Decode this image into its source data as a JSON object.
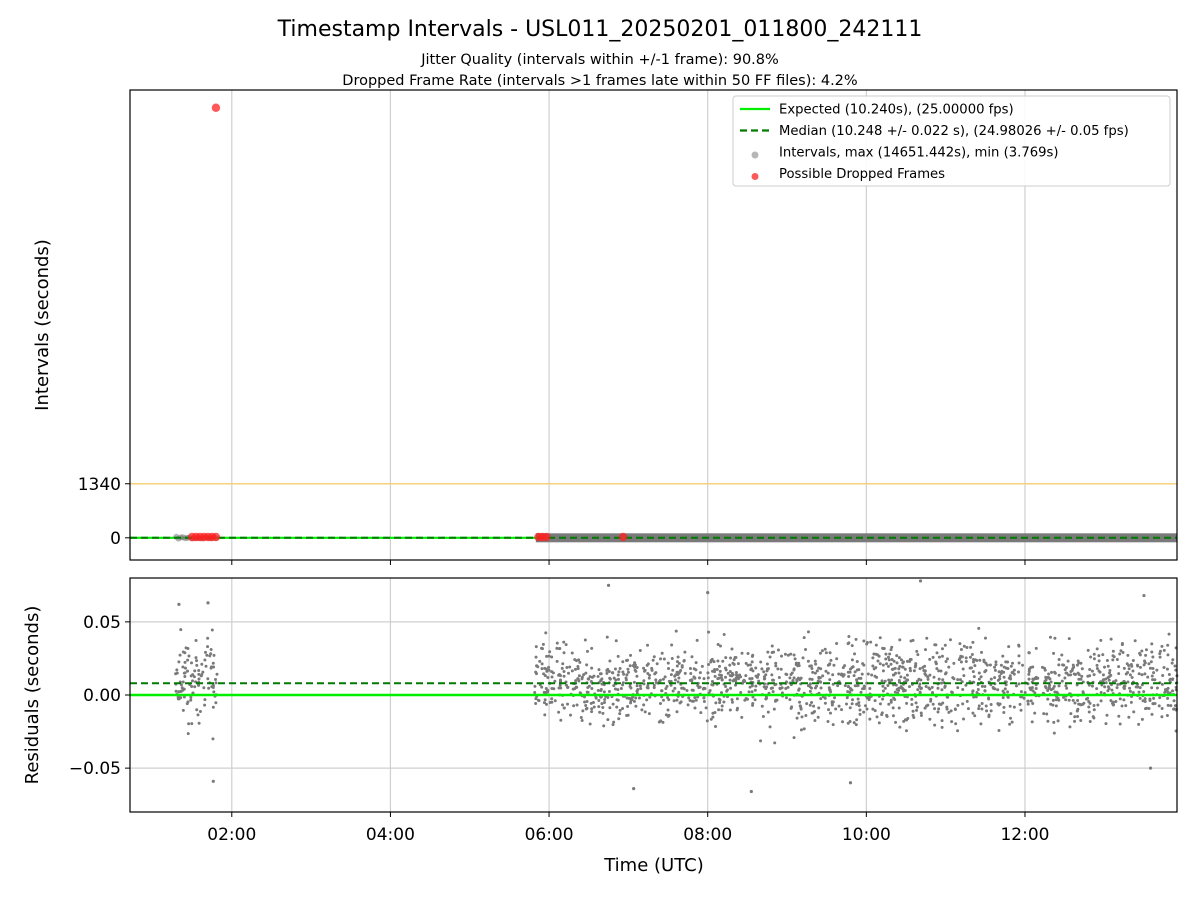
{
  "title": "Timestamp Intervals - USL011_20250201_011800_242111",
  "subtitle_lines": [
    "Jitter Quality (intervals within +/-1 frame): 90.8%",
    "Dropped Frame Rate (intervals >1 frames late within 50 FF files): 4.2%"
  ],
  "colors": {
    "expected": "#00ee00",
    "median": "#007a00",
    "intervals": "#7a7a7a",
    "dropped": "#ff2020",
    "threshold": "#f5d27a",
    "grid": "#cfcfcf"
  },
  "chart_data": [
    {
      "type": "scatter",
      "panel": "intervals",
      "ylabel": "Intervals (seconds)",
      "xlim": [
        "00:43",
        "13:55"
      ],
      "ylim": [
        -550,
        11100
      ],
      "yticks": [
        0,
        1340
      ],
      "xticks": [
        "02:00",
        "04:00",
        "06:00",
        "08:00",
        "10:00",
        "12:00"
      ],
      "grid": "vertical",
      "legend_position": "top-right",
      "threshold_line": 1340,
      "expected": 10.24,
      "median": 10.248,
      "legend": [
        {
          "key": "expected",
          "label": "Expected (10.240s), (25.00000 fps)"
        },
        {
          "key": "median",
          "label": "Median (10.248 +/- 0.022 s), (24.98026 +/- 0.05 fps)"
        },
        {
          "key": "intervals",
          "label": "Intervals, max (14651.442s), min (3.769s)"
        },
        {
          "key": "dropped",
          "label": "Possible Dropped Frames"
        }
      ],
      "interval_segments": [
        {
          "start": "01:18",
          "end": "01:48"
        },
        {
          "start": "05:50",
          "end": "13:55"
        }
      ],
      "dropped_frames": [
        {
          "time": "01:48",
          "value": 10660
        },
        {
          "time": "01:30",
          "value": 20
        },
        {
          "time": "01:33",
          "value": 20
        },
        {
          "time": "01:36",
          "value": 20
        },
        {
          "time": "01:39",
          "value": 20
        },
        {
          "time": "01:42",
          "value": 20
        },
        {
          "time": "01:45",
          "value": 20
        },
        {
          "time": "01:48",
          "value": 20
        },
        {
          "time": "05:52",
          "value": 20
        },
        {
          "time": "05:55",
          "value": 20
        },
        {
          "time": "05:58",
          "value": 20
        },
        {
          "time": "06:56",
          "value": 20
        }
      ]
    },
    {
      "type": "scatter",
      "panel": "residuals",
      "xlabel": "Time (UTC)",
      "ylabel": "Residuals (seconds)",
      "xlim": [
        "00:43",
        "13:55"
      ],
      "ylim": [
        -0.08,
        0.08
      ],
      "yticks": [
        0.05,
        0.0,
        -0.05
      ],
      "ytick_labels": [
        "0.05",
        "0.00",
        "−0.05"
      ],
      "xticks": [
        "02:00",
        "04:00",
        "06:00",
        "08:00",
        "10:00",
        "12:00"
      ],
      "grid": "both",
      "expected_residual": 0.0,
      "median_residual": 0.008,
      "residual_segments": [
        {
          "start": "01:17",
          "end": "01:49",
          "mean": 0.008,
          "spread": 0.022
        },
        {
          "start": "05:49",
          "end": "13:55",
          "mean": 0.008,
          "spread": 0.022
        }
      ],
      "residual_extremes": [
        {
          "time": "01:20",
          "value": 0.062
        },
        {
          "time": "01:42",
          "value": 0.063
        },
        {
          "time": "01:46",
          "value": -0.059
        },
        {
          "time": "06:45",
          "value": 0.075
        },
        {
          "time": "07:04",
          "value": -0.064
        },
        {
          "time": "08:00",
          "value": 0.07
        },
        {
          "time": "08:33",
          "value": -0.066
        },
        {
          "time": "10:41",
          "value": 0.078
        },
        {
          "time": "13:30",
          "value": 0.068
        },
        {
          "time": "13:35",
          "value": -0.05
        },
        {
          "time": "09:48",
          "value": -0.06
        }
      ]
    }
  ]
}
